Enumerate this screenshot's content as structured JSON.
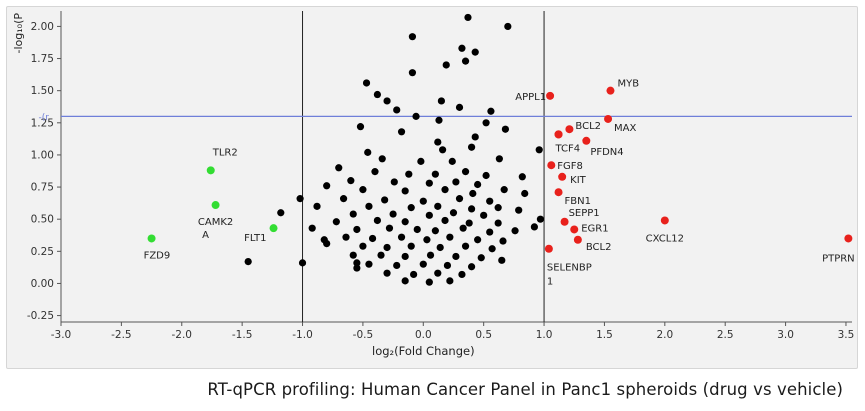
{
  "caption": "RT-qPCR profiling: Human Cancer Panel in Panc1 spheroids (drug vs vehicle)",
  "chart_data": {
    "type": "scatter",
    "title": "",
    "xlabel": "log₂(Fold Change)",
    "ylabel": "-log₁₀(P",
    "xlim": [
      -3.0,
      3.55
    ],
    "ylim": [
      -0.3,
      2.12
    ],
    "x_ticks": [
      "-3.0",
      "-2.5",
      "-2.0",
      "-1.5",
      "-1.0",
      "-0.5",
      "0.0",
      "0.5",
      "1.0",
      "1.5",
      "2.0",
      "2.5",
      "3.0",
      "3.5"
    ],
    "y_ticks": [
      "-0.25",
      "0.00",
      "0.25",
      "0.50",
      "0.75",
      "1.00",
      "1.25",
      "1.50",
      "1.75",
      "2.00"
    ],
    "threshold_label": "-(r",
    "fold_threshold": [
      -1.0,
      1.0
    ],
    "p_threshold": 1.3,
    "grid": false,
    "colors": {
      "background": "#f2f2f2",
      "up": "#e8211c",
      "down": "#33dd33",
      "neutral": "#000000",
      "threshold_line": "#6f7fd9",
      "axis": "#555555"
    },
    "series": [
      {
        "key": "up",
        "points": [
          {
            "label": "APPL1",
            "x": 1.05,
            "y": 1.46
          },
          {
            "label": "MYB",
            "x": 1.55,
            "y": 1.5
          },
          {
            "label": "MAX",
            "x": 1.53,
            "y": 1.28
          },
          {
            "label": "BCL2",
            "x": 1.21,
            "y": 1.2
          },
          {
            "label": "",
            "x": 1.12,
            "y": 1.16
          },
          {
            "label": "TCF4",
            "x": 1.12,
            "y": 1.16
          },
          {
            "label": "PFDN4",
            "x": 1.35,
            "y": 1.11
          },
          {
            "label": "FGF8",
            "x": 1.06,
            "y": 0.92
          },
          {
            "label": "KIT",
            "x": 1.15,
            "y": 0.83
          },
          {
            "label": "FBN1",
            "x": 1.12,
            "y": 0.71
          },
          {
            "label": "SEPP1",
            "x": 1.17,
            "y": 0.48
          },
          {
            "label": "EGR1",
            "x": 1.25,
            "y": 0.42
          },
          {
            "label": "BCL2",
            "x": 1.28,
            "y": 0.34
          },
          {
            "label": "SELENBP",
            "x": 1.04,
            "y": 0.27
          },
          {
            "label": "CXCL12",
            "x": 2.0,
            "y": 0.49
          },
          {
            "label": "PTPRN",
            "x": 3.52,
            "y": 0.35
          }
        ]
      },
      {
        "key": "down",
        "points": [
          {
            "label": "TLR2",
            "x": -1.76,
            "y": 0.88
          },
          {
            "label": "CAMK2",
            "x": -1.72,
            "y": 0.61
          },
          {
            "label": "FLT1",
            "x": -1.24,
            "y": 0.43
          },
          {
            "label": "FZD9",
            "x": -2.25,
            "y": 0.35
          }
        ]
      },
      {
        "key": "neutral",
        "points": [
          {
            "x": 0.37,
            "y": 2.07
          },
          {
            "x": 0.7,
            "y": 2.0
          },
          {
            "x": -0.09,
            "y": 1.92
          },
          {
            "x": 0.32,
            "y": 1.83
          },
          {
            "x": 0.43,
            "y": 1.8
          },
          {
            "x": 0.35,
            "y": 1.73
          },
          {
            "x": 0.19,
            "y": 1.7
          },
          {
            "x": -0.09,
            "y": 1.64
          },
          {
            "x": -0.47,
            "y": 1.56
          },
          {
            "x": -0.38,
            "y": 1.47
          },
          {
            "x": -0.3,
            "y": 1.42
          },
          {
            "x": -0.22,
            "y": 1.35
          },
          {
            "x": 0.15,
            "y": 1.42
          },
          {
            "x": 0.3,
            "y": 1.37
          },
          {
            "x": 0.56,
            "y": 1.34
          },
          {
            "x": -0.06,
            "y": 1.3
          },
          {
            "x": 0.13,
            "y": 1.27
          },
          {
            "x": 0.52,
            "y": 1.25
          },
          {
            "x": -0.52,
            "y": 1.22
          },
          {
            "x": 0.68,
            "y": 1.2
          },
          {
            "x": -0.18,
            "y": 1.18
          },
          {
            "x": 0.43,
            "y": 1.14
          },
          {
            "x": 0.12,
            "y": 1.1
          },
          {
            "x": 0.4,
            "y": 1.06
          },
          {
            "x": 0.16,
            "y": 1.04
          },
          {
            "x": -0.46,
            "y": 1.02
          },
          {
            "x": 0.96,
            "y": 1.04
          },
          {
            "x": -0.34,
            "y": 0.97
          },
          {
            "x": -0.02,
            "y": 0.95
          },
          {
            "x": 0.24,
            "y": 0.95
          },
          {
            "x": 0.63,
            "y": 0.97
          },
          {
            "x": -0.7,
            "y": 0.9
          },
          {
            "x": -0.4,
            "y": 0.87
          },
          {
            "x": -0.12,
            "y": 0.85
          },
          {
            "x": 0.1,
            "y": 0.85
          },
          {
            "x": 0.35,
            "y": 0.87
          },
          {
            "x": 0.52,
            "y": 0.84
          },
          {
            "x": 0.82,
            "y": 0.83
          },
          {
            "x": -0.6,
            "y": 0.8
          },
          {
            "x": -0.24,
            "y": 0.79
          },
          {
            "x": 0.05,
            "y": 0.78
          },
          {
            "x": 0.27,
            "y": 0.79
          },
          {
            "x": 0.45,
            "y": 0.77
          },
          {
            "x": -0.8,
            "y": 0.76
          },
          {
            "x": -0.5,
            "y": 0.73
          },
          {
            "x": -0.15,
            "y": 0.72
          },
          {
            "x": 0.18,
            "y": 0.73
          },
          {
            "x": 0.41,
            "y": 0.7
          },
          {
            "x": 0.67,
            "y": 0.73
          },
          {
            "x": 0.84,
            "y": 0.7
          },
          {
            "x": -0.66,
            "y": 0.66
          },
          {
            "x": -0.32,
            "y": 0.65
          },
          {
            "x": 0.0,
            "y": 0.64
          },
          {
            "x": 0.3,
            "y": 0.66
          },
          {
            "x": 0.55,
            "y": 0.64
          },
          {
            "x": -1.02,
            "y": 0.66
          },
          {
            "x": -0.88,
            "y": 0.6
          },
          {
            "x": -0.45,
            "y": 0.6
          },
          {
            "x": -0.1,
            "y": 0.59
          },
          {
            "x": 0.12,
            "y": 0.6
          },
          {
            "x": 0.4,
            "y": 0.58
          },
          {
            "x": 0.62,
            "y": 0.59
          },
          {
            "x": 0.79,
            "y": 0.57
          },
          {
            "x": -0.58,
            "y": 0.54
          },
          {
            "x": -0.25,
            "y": 0.54
          },
          {
            "x": 0.05,
            "y": 0.53
          },
          {
            "x": 0.25,
            "y": 0.55
          },
          {
            "x": 0.5,
            "y": 0.53
          },
          {
            "x": -1.18,
            "y": 0.55
          },
          {
            "x": -0.72,
            "y": 0.48
          },
          {
            "x": -0.38,
            "y": 0.49
          },
          {
            "x": -0.15,
            "y": 0.48
          },
          {
            "x": 0.18,
            "y": 0.49
          },
          {
            "x": 0.38,
            "y": 0.47
          },
          {
            "x": 0.62,
            "y": 0.47
          },
          {
            "x": 0.97,
            "y": 0.5
          },
          {
            "x": -0.92,
            "y": 0.43
          },
          {
            "x": -0.55,
            "y": 0.42
          },
          {
            "x": -0.28,
            "y": 0.43
          },
          {
            "x": -0.05,
            "y": 0.42
          },
          {
            "x": 0.1,
            "y": 0.41
          },
          {
            "x": 0.33,
            "y": 0.43
          },
          {
            "x": 0.55,
            "y": 0.4
          },
          {
            "x": 0.76,
            "y": 0.41
          },
          {
            "x": -0.64,
            "y": 0.36
          },
          {
            "x": -0.42,
            "y": 0.35
          },
          {
            "x": -0.18,
            "y": 0.36
          },
          {
            "x": 0.03,
            "y": 0.34
          },
          {
            "x": 0.22,
            "y": 0.36
          },
          {
            "x": 0.45,
            "y": 0.34
          },
          {
            "x": 0.66,
            "y": 0.33
          },
          {
            "x": -0.8,
            "y": 0.31
          },
          {
            "x": -0.5,
            "y": 0.29
          },
          {
            "x": -0.3,
            "y": 0.28
          },
          {
            "x": -0.1,
            "y": 0.29
          },
          {
            "x": 0.14,
            "y": 0.28
          },
          {
            "x": 0.35,
            "y": 0.29
          },
          {
            "x": 0.57,
            "y": 0.27
          },
          {
            "x": -0.58,
            "y": 0.22
          },
          {
            "x": -0.35,
            "y": 0.22
          },
          {
            "x": -0.15,
            "y": 0.21
          },
          {
            "x": 0.06,
            "y": 0.22
          },
          {
            "x": 0.27,
            "y": 0.21
          },
          {
            "x": 0.48,
            "y": 0.2
          },
          {
            "x": -0.45,
            "y": 0.15
          },
          {
            "x": -0.22,
            "y": 0.14
          },
          {
            "x": 0.0,
            "y": 0.15
          },
          {
            "x": 0.2,
            "y": 0.14
          },
          {
            "x": 0.4,
            "y": 0.13
          },
          {
            "x": -0.3,
            "y": 0.08
          },
          {
            "x": -0.08,
            "y": 0.07
          },
          {
            "x": 0.12,
            "y": 0.08
          },
          {
            "x": 0.32,
            "y": 0.07
          },
          {
            "x": -0.15,
            "y": 0.02
          },
          {
            "x": 0.05,
            "y": 0.01
          },
          {
            "x": 0.22,
            "y": 0.02
          },
          {
            "x": -1.45,
            "y": 0.17
          },
          {
            "x": -1.0,
            "y": 0.16
          },
          {
            "x": -0.55,
            "y": 0.16
          },
          {
            "x": -0.55,
            "y": 0.12
          },
          {
            "x": 0.65,
            "y": 0.18
          },
          {
            "x": 0.92,
            "y": 0.44
          },
          {
            "x": -0.82,
            "y": 0.34
          }
        ]
      }
    ]
  }
}
